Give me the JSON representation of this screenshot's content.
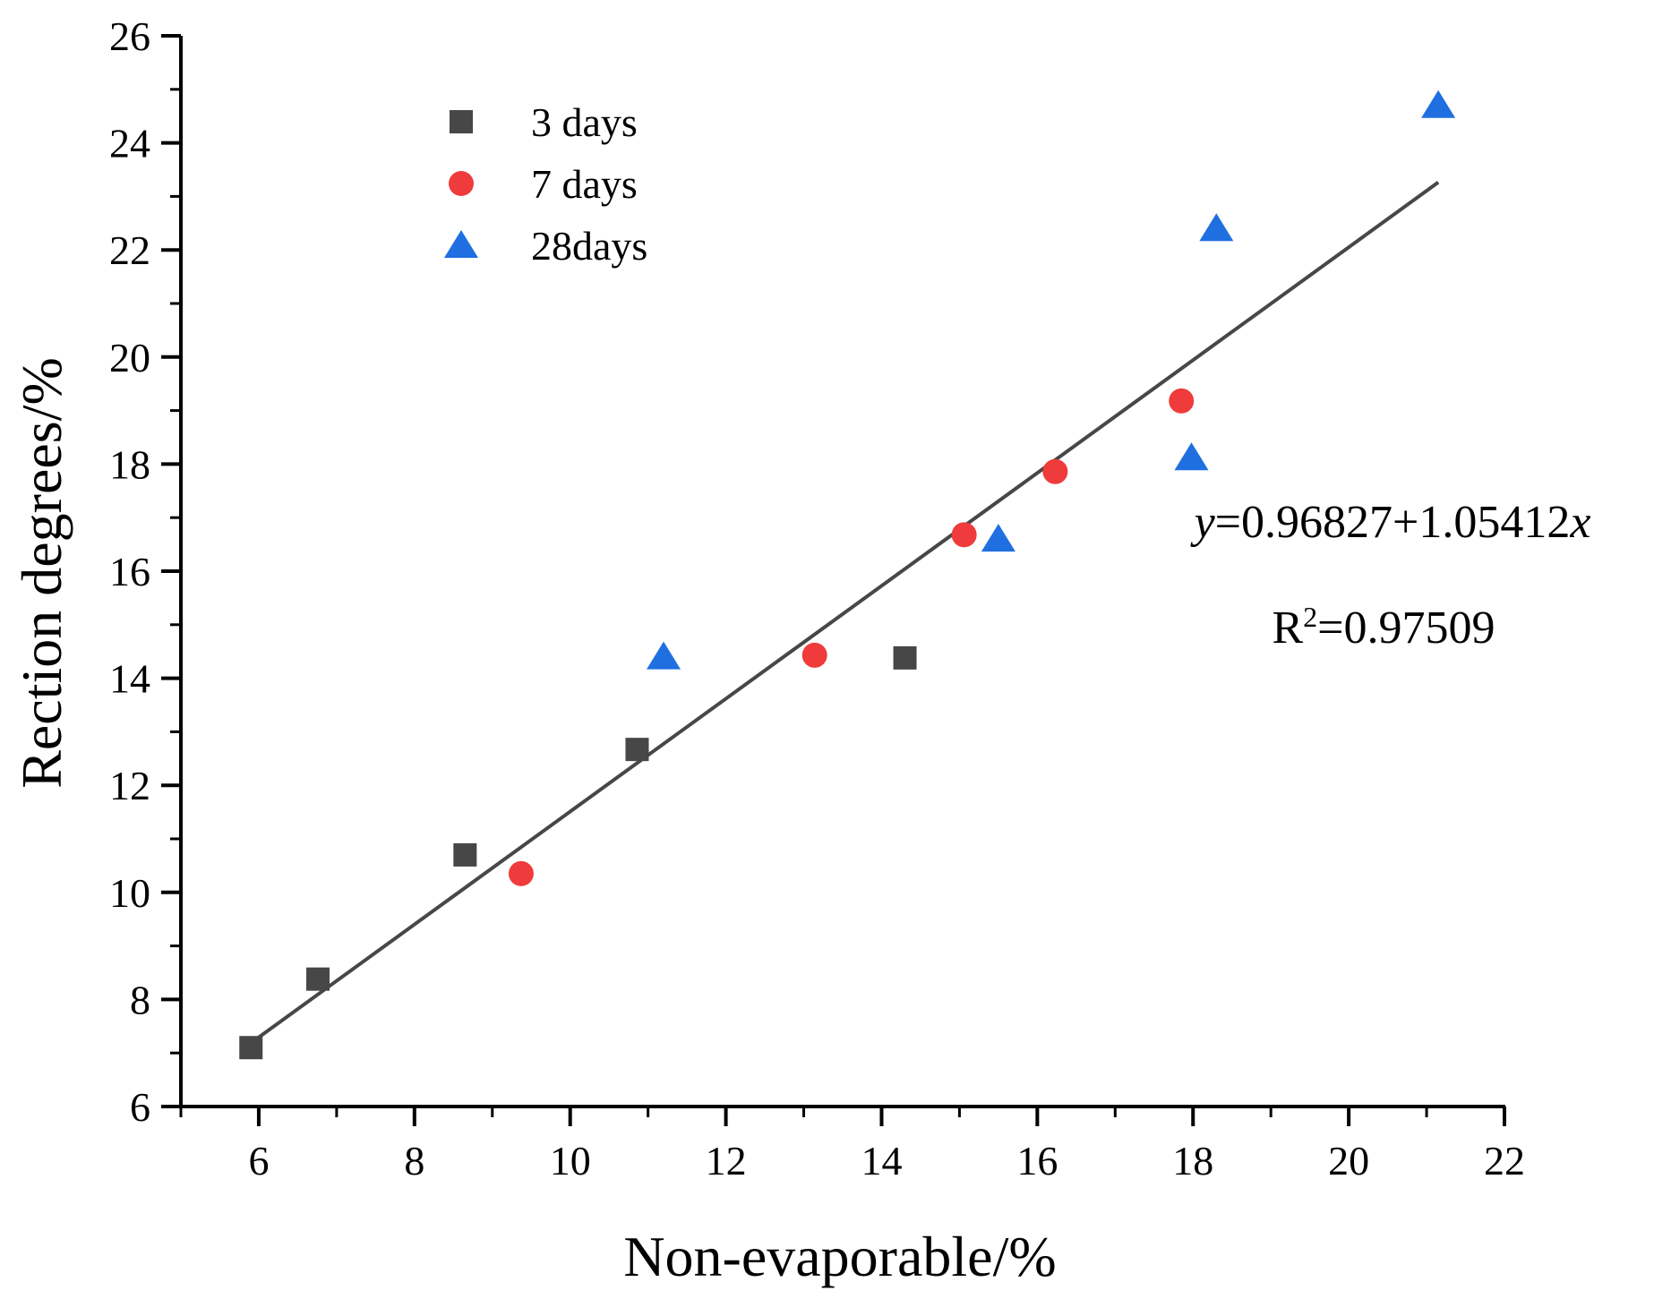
{
  "chart_data": {
    "type": "scatter",
    "xlabel": "Non-evaporable/%",
    "ylabel": "Rection degrees/%",
    "xlim": [
      5,
      22
    ],
    "ylim": [
      6,
      26
    ],
    "x_ticks": [
      6,
      8,
      10,
      12,
      14,
      16,
      18,
      20,
      22
    ],
    "y_ticks": [
      6,
      8,
      10,
      12,
      14,
      16,
      18,
      20,
      22,
      24,
      26
    ],
    "x_tick_labels": [
      "6",
      "8",
      "10",
      "12",
      "14",
      "16",
      "18",
      "20",
      "22"
    ],
    "y_tick_labels": [
      "6",
      "8",
      "10",
      "12",
      "14",
      "16",
      "18",
      "20",
      "22",
      "24",
      "26"
    ],
    "grid": false,
    "legend_position": "top-left",
    "series": [
      {
        "name": "3 days",
        "marker": "square",
        "color": "#474747",
        "points": [
          [
            5.9,
            7.1
          ],
          [
            6.76,
            8.38
          ],
          [
            8.65,
            10.7
          ],
          [
            10.86,
            12.67
          ],
          [
            14.3,
            14.38
          ]
        ]
      },
      {
        "name": "7 days",
        "marker": "circle",
        "color": "#ef3b3b",
        "points": [
          [
            9.37,
            10.35
          ],
          [
            13.14,
            14.43
          ],
          [
            15.06,
            16.68
          ],
          [
            16.23,
            17.86
          ],
          [
            17.85,
            19.18
          ]
        ]
      },
      {
        "name": "28days",
        "marker": "triangle",
        "color": "#1f6fe0",
        "points": [
          [
            11.2,
            14.4
          ],
          [
            15.5,
            16.6
          ],
          [
            17.98,
            18.12
          ],
          [
            18.3,
            22.4
          ],
          [
            21.15,
            24.7
          ]
        ]
      }
    ],
    "fit_line": {
      "intercept": 0.96827,
      "slope": 1.05412,
      "x_range": [
        5.9,
        21.15
      ],
      "color": "#474747"
    },
    "annotations": {
      "equation": {
        "y_var": "y",
        "body": "=0.96827+1.05412",
        "x_var": "x"
      },
      "r2": {
        "prefix": "R",
        "sup": "2",
        "value": "=0.97509"
      }
    }
  }
}
